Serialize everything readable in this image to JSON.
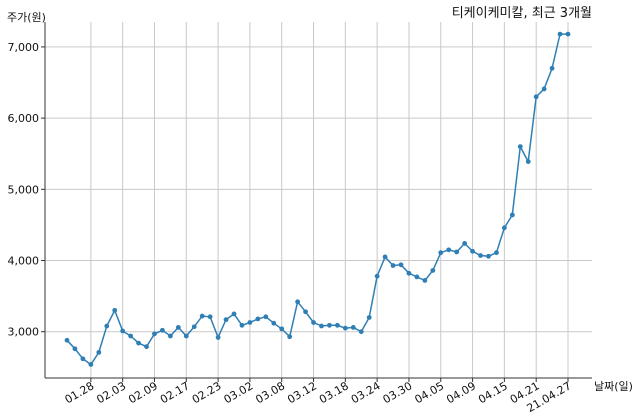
{
  "chart_data": {
    "type": "line",
    "title": "티케이케미칼, 최근 3개월",
    "ylabel": "주가(원)",
    "xlabel": "날짜(일)",
    "ylim": [
      2350,
      7350
    ],
    "yticks": [
      3000,
      4000,
      5000,
      6000,
      7000
    ],
    "ytick_labels": [
      "3,000",
      "4,000",
      "5,000",
      "6,000",
      "7,000"
    ],
    "grid": true,
    "line_color": "#2f7fb5",
    "x": [
      "01.25",
      "01.26",
      "01.27",
      "01.28",
      "01.29",
      "02.01",
      "02.02",
      "02.03",
      "02.04",
      "02.05",
      "02.08",
      "02.09",
      "02.10",
      "02.15",
      "02.16",
      "02.17",
      "02.18",
      "02.19",
      "02.22",
      "02.23",
      "02.24",
      "02.25",
      "02.26",
      "03.02",
      "03.03",
      "03.04",
      "03.05",
      "03.08",
      "03.09",
      "03.10",
      "03.11",
      "03.12",
      "03.15",
      "03.16",
      "03.17",
      "03.18",
      "03.19",
      "03.22",
      "03.23",
      "03.24",
      "03.25",
      "03.26",
      "03.29",
      "03.30",
      "03.31",
      "04.01",
      "04.02",
      "04.05",
      "04.06",
      "04.07",
      "04.08",
      "04.09",
      "04.12",
      "04.13",
      "04.14",
      "04.15",
      "04.16",
      "04.19",
      "04.20",
      "04.21",
      "04.22",
      "04.23",
      "04.26",
      "04.27"
    ],
    "values": [
      2880,
      2760,
      2620,
      2540,
      2710,
      3080,
      3300,
      3010,
      2940,
      2840,
      2790,
      2970,
      3020,
      2940,
      3060,
      2940,
      3070,
      3220,
      3210,
      2920,
      3170,
      3250,
      3090,
      3130,
      3180,
      3210,
      3120,
      3040,
      2930,
      3420,
      3280,
      3130,
      3080,
      3090,
      3090,
      3050,
      3060,
      3000,
      3200,
      3780,
      4050,
      3930,
      3940,
      3820,
      3770,
      3720,
      3860,
      4110,
      4150,
      4120,
      4240,
      4130,
      4070,
      4060,
      4110,
      4460,
      4640,
      5600,
      5390,
      6300,
      6410,
      6700,
      7180,
      7180
    ],
    "xtick_labels": [
      "01.28",
      "02.03",
      "02.09",
      "02.17",
      "02.23",
      "03.02",
      "03.08",
      "03.12",
      "03.18",
      "03.24",
      "03.30",
      "04.05",
      "04.09",
      "04.15",
      "04.21",
      "21.04.27"
    ]
  }
}
